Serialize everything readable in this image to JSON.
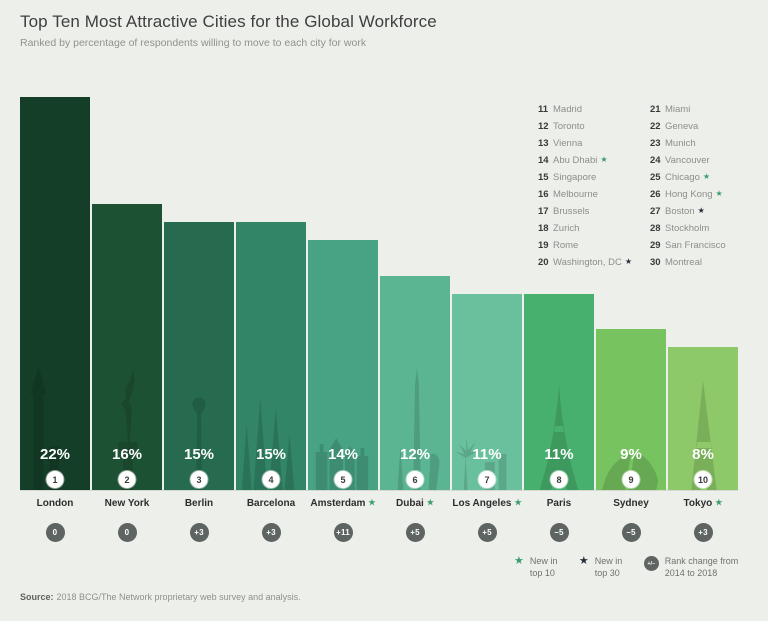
{
  "page": {
    "title": "Top Ten Most Attractive Cities for the Global Workforce",
    "subtitle": "Ranked by percentage of respondents willing to move to each city for work",
    "source_label": "Source:",
    "source_text": "2018 BCG/The Network proprietary web survey and analysis."
  },
  "chart_data": {
    "type": "bar",
    "title": "Top Ten Most Attractive Cities for the Global Workforce",
    "subtitle": "Ranked by percentage of respondents willing to move to each city for work",
    "unit": "%",
    "ylim": [
      0,
      22
    ],
    "grid": false,
    "legend_position": "bottom-right",
    "categories": [
      "London",
      "New York",
      "Berlin",
      "Barcelona",
      "Amsterdam",
      "Dubai",
      "Los Angeles",
      "Paris",
      "Sydney",
      "Tokyo"
    ],
    "values": [
      22,
      16,
      15,
      15,
      14,
      12,
      11,
      11,
      9,
      8
    ],
    "value_labels": [
      "22%",
      "16%",
      "15%",
      "15%",
      "14%",
      "12%",
      "11%",
      "11%",
      "9%",
      "8%"
    ],
    "ranks": [
      "1",
      "2",
      "3",
      "4",
      "5",
      "6",
      "7",
      "8",
      "9",
      "10"
    ],
    "rank_changes": [
      "0",
      "0",
      "+3",
      "+3",
      "+11",
      "+5",
      "+5",
      "–5",
      "–5",
      "+3"
    ],
    "new_in_top_10": [
      false,
      false,
      false,
      false,
      true,
      true,
      true,
      false,
      false,
      true
    ],
    "bar_colors": [
      "#143e28",
      "#1d5134",
      "#266b50",
      "#328566",
      "#48a384",
      "#5bb593",
      "#69c09c",
      "#48b06e",
      "#76c35f",
      "#8dc968"
    ]
  },
  "ranking_list": {
    "columns": [
      [
        {
          "rank": "11",
          "city": "Madrid"
        },
        {
          "rank": "12",
          "city": "Toronto"
        },
        {
          "rank": "13",
          "city": "Vienna"
        },
        {
          "rank": "14",
          "city": "Abu Dhabi",
          "star": "green"
        },
        {
          "rank": "15",
          "city": "Singapore"
        },
        {
          "rank": "16",
          "city": "Melbourne"
        },
        {
          "rank": "17",
          "city": "Brussels"
        },
        {
          "rank": "18",
          "city": "Zurich"
        },
        {
          "rank": "19",
          "city": "Rome"
        },
        {
          "rank": "20",
          "city": "Washington, DC",
          "star": "dark"
        }
      ],
      [
        {
          "rank": "21",
          "city": "Miami"
        },
        {
          "rank": "22",
          "city": "Geneva"
        },
        {
          "rank": "23",
          "city": "Munich"
        },
        {
          "rank": "24",
          "city": "Vancouver"
        },
        {
          "rank": "25",
          "city": "Chicago",
          "star": "green"
        },
        {
          "rank": "26",
          "city": "Hong Kong",
          "star": "green"
        },
        {
          "rank": "27",
          "city": "Boston",
          "star": "dark"
        },
        {
          "rank": "28",
          "city": "Stockholm"
        },
        {
          "rank": "29",
          "city": "San Francisco"
        },
        {
          "rank": "30",
          "city": "Montreal"
        }
      ]
    ]
  },
  "legend": {
    "items": [
      {
        "symbol": "star-green",
        "label": "New in top 10"
      },
      {
        "symbol": "star-dark",
        "label": "New in top 30"
      },
      {
        "symbol": "rank-circle",
        "symbol_text": "+/–",
        "label": "Rank change from 2014 to 2018"
      }
    ]
  },
  "colors": {
    "background": "#edefeb",
    "star_green": "#3f9d6d",
    "star_dark": "#26323a",
    "change_badge": "#5e6462",
    "baseline": "#d6d9d3"
  }
}
